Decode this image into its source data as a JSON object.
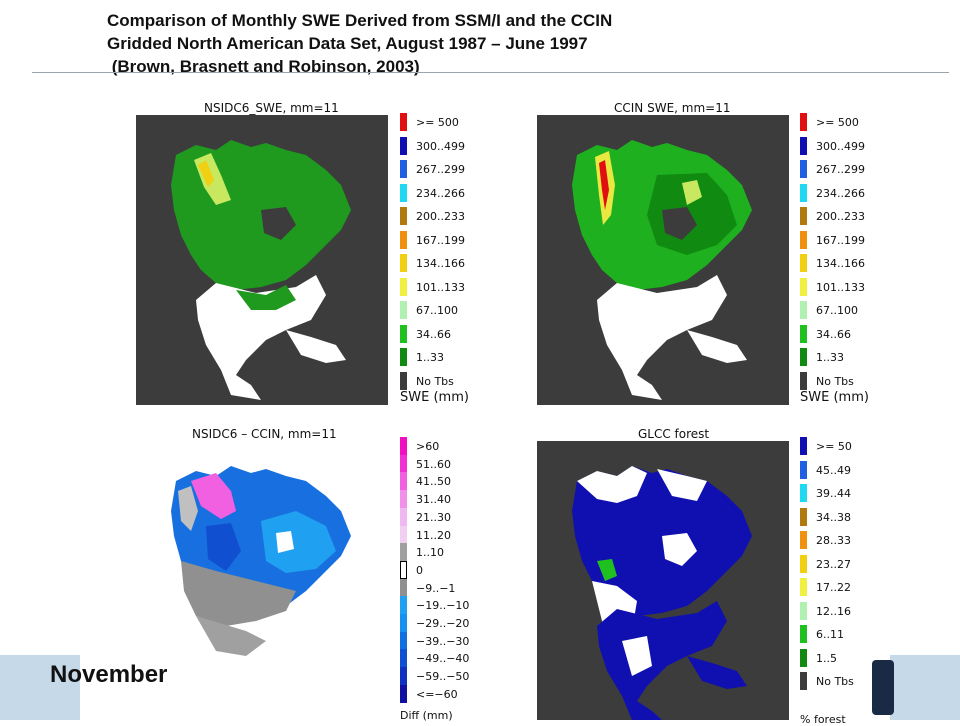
{
  "title": {
    "line1": "Comparison of Monthly SWE Derived from SSM/I and the CCIN",
    "line2": "Gridded North American Data Set, August 1987 – June 1997",
    "line3": " (Brown, Brasnett and Robinson, 2003)"
  },
  "month": "November",
  "panels": [
    {
      "title": "NSIDC6_SWE, mm=11",
      "unit": "SWE (mm)",
      "legend": [
        {
          "label": ">= 500",
          "color": "#e01010"
        },
        {
          "label": "300..499",
          "color": "#1010b0"
        },
        {
          "label": "267..299",
          "color": "#2060e0"
        },
        {
          "label": "234..266",
          "color": "#20d8f0"
        },
        {
          "label": "200..233",
          "color": "#b07a10"
        },
        {
          "label": "167..199",
          "color": "#f09010"
        },
        {
          "label": "134..166",
          "color": "#f0d010"
        },
        {
          "label": "101..133",
          "color": "#f0f040"
        },
        {
          "label": "67..100",
          "color": "#b0f0b0"
        },
        {
          "label": "34..66",
          "color": "#20c020"
        },
        {
          "label": "1..33",
          "color": "#108a10"
        },
        {
          "label": "No Tbs",
          "color": "#3c3c3c"
        }
      ]
    },
    {
      "title": "CCIN SWE, mm=11",
      "unit": "SWE (mm)",
      "legend": [
        {
          "label": ">= 500",
          "color": "#e01010"
        },
        {
          "label": "300..499",
          "color": "#1010b0"
        },
        {
          "label": "267..299",
          "color": "#2060e0"
        },
        {
          "label": "234..266",
          "color": "#20d8f0"
        },
        {
          "label": "200..233",
          "color": "#b07a10"
        },
        {
          "label": "167..199",
          "color": "#f09010"
        },
        {
          "label": "134..166",
          "color": "#f0d010"
        },
        {
          "label": "101..133",
          "color": "#f0f040"
        },
        {
          "label": "67..100",
          "color": "#b0f0b0"
        },
        {
          "label": "34..66",
          "color": "#20c020"
        },
        {
          "label": "1..33",
          "color": "#108a10"
        },
        {
          "label": "No Tbs",
          "color": "#3c3c3c"
        }
      ]
    },
    {
      "title": "NSIDC6 – CCIN, mm=11",
      "unit": "Diff (mm)",
      "legend": [
        {
          "label": ">60",
          "color": "#f010c0"
        },
        {
          "label": "51..60",
          "color": "#f030d0"
        },
        {
          "label": "41..50",
          "color": "#f060e0"
        },
        {
          "label": "31..40",
          "color": "#f090e8"
        },
        {
          "label": "21..30",
          "color": "#f0b8f0"
        },
        {
          "label": "11..20",
          "color": "#f0d0f0"
        },
        {
          "label": "1..10",
          "color": "#a0a0a0"
        },
        {
          "label": "0",
          "color": "#ffffff",
          "outline": true
        },
        {
          "label": "−9..−1",
          "color": "#909090"
        },
        {
          "label": "−19..−10",
          "color": "#20a0f0"
        },
        {
          "label": "−29..−20",
          "color": "#1890f0"
        },
        {
          "label": "−39..−30",
          "color": "#1070e0"
        },
        {
          "label": "−49..−40",
          "color": "#1050d0"
        },
        {
          "label": "−59..−50",
          "color": "#1030c0"
        },
        {
          "label": "<=−60",
          "color": "#1010a0"
        }
      ]
    },
    {
      "title": "GLCC forest",
      "unit": "% forest",
      "legend": [
        {
          "label": ">= 50",
          "color": "#1010b0"
        },
        {
          "label": "45..49",
          "color": "#2060e0"
        },
        {
          "label": "39..44",
          "color": "#20d8f0"
        },
        {
          "label": "34..38",
          "color": "#b07a10"
        },
        {
          "label": "28..33",
          "color": "#f09010"
        },
        {
          "label": "23..27",
          "color": "#f0d010"
        },
        {
          "label": "17..22",
          "color": "#f0f040"
        },
        {
          "label": "12..16",
          "color": "#b0f0b0"
        },
        {
          "label": "6..11",
          "color": "#20c020"
        },
        {
          "label": "1..5",
          "color": "#108a10"
        },
        {
          "label": "No Tbs",
          "color": "#3c3c3c"
        }
      ]
    }
  ]
}
